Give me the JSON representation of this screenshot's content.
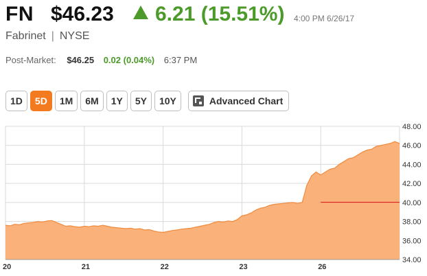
{
  "quote": {
    "ticker": "FN",
    "price": "$46.23",
    "change": "6.21 (15.51%)",
    "as_of": "4:00 PM 6/26/17",
    "company": "Fabrinet",
    "separator": "|",
    "exchange": "NYSE",
    "post_market_label": "Post-Market:",
    "post_market_price": "$46.25",
    "post_market_change": "0.02 (0.04%)",
    "post_market_time": "6:37 PM"
  },
  "range_buttons": [
    {
      "label": "1D",
      "active": false
    },
    {
      "label": "5D",
      "active": true
    },
    {
      "label": "1M",
      "active": false
    },
    {
      "label": "6M",
      "active": false
    },
    {
      "label": "1Y",
      "active": false
    },
    {
      "label": "5Y",
      "active": false
    },
    {
      "label": "10Y",
      "active": false
    }
  ],
  "advanced_chart_label": "Advanced Chart",
  "colors": {
    "up": "#4c9a2a",
    "active_button": "#f47a20",
    "area_fill": "#fbb17a",
    "area_line": "#f08a3c",
    "previous_close_line": "#d62020"
  },
  "chart_data": {
    "type": "area",
    "x_tick_labels": [
      "20",
      "21",
      "22",
      "23",
      "26"
    ],
    "y_tick_labels": [
      "34.00",
      "36.00",
      "38.00",
      "40.00",
      "42.00",
      "44.00",
      "46.00",
      "48.00"
    ],
    "ylim": [
      34,
      48
    ],
    "grid": true,
    "previous_close": 40.02,
    "series": [
      {
        "values": [
          37.6,
          37.55,
          37.7,
          37.65,
          37.8,
          37.85,
          37.9,
          38.0,
          37.95,
          38.05,
          38.1,
          37.9,
          37.7,
          37.5,
          37.55,
          37.45,
          37.4,
          37.5,
          37.45,
          37.55,
          37.5,
          37.6,
          37.5,
          37.4,
          37.35,
          37.3,
          37.25,
          37.3,
          37.2,
          37.25,
          37.1,
          37.15,
          37.0,
          36.9,
          36.85,
          36.95,
          37.05,
          37.1,
          37.2,
          37.25,
          37.3,
          37.4,
          37.5,
          37.6,
          37.7,
          37.9,
          38.0,
          37.95,
          38.05,
          38.0,
          38.2,
          38.6,
          38.7,
          38.9,
          39.2,
          39.4,
          39.5,
          39.7,
          39.8,
          39.85,
          39.9,
          39.95,
          40.0,
          39.9,
          40.0,
          41.8,
          42.8,
          43.2,
          42.9,
          43.2,
          43.5,
          43.6,
          44.0,
          44.3,
          44.6,
          44.7,
          45.0,
          45.3,
          45.5,
          45.6,
          45.9,
          46.0,
          46.1,
          46.2,
          46.4,
          46.2
        ]
      }
    ]
  }
}
